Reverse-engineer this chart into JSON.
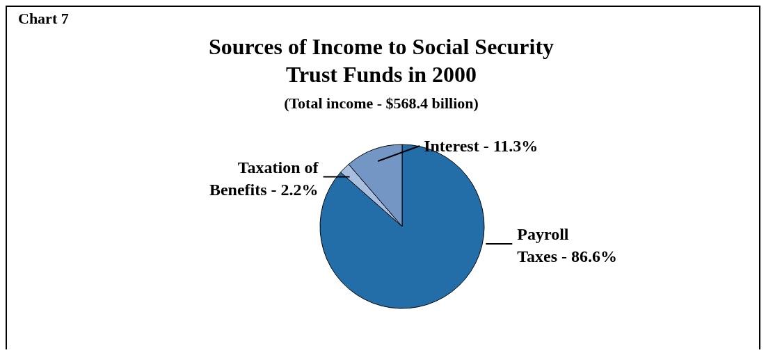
{
  "chart_data": {
    "type": "pie",
    "title": "Sources of Income to Social Security Trust Funds in 2000",
    "subtitle": "(Total income - $568.4 billion)",
    "annotations": [
      "Chart 7"
    ],
    "categories": [
      "Payroll Taxes - 86.6%",
      "Taxation of Benefits - 2.2%",
      "Interest - 11.3%"
    ],
    "values": [
      86.6,
      2.2,
      11.3
    ],
    "colors": [
      "#236ea8",
      "#a9bfe0",
      "#7396c4"
    ]
  }
}
